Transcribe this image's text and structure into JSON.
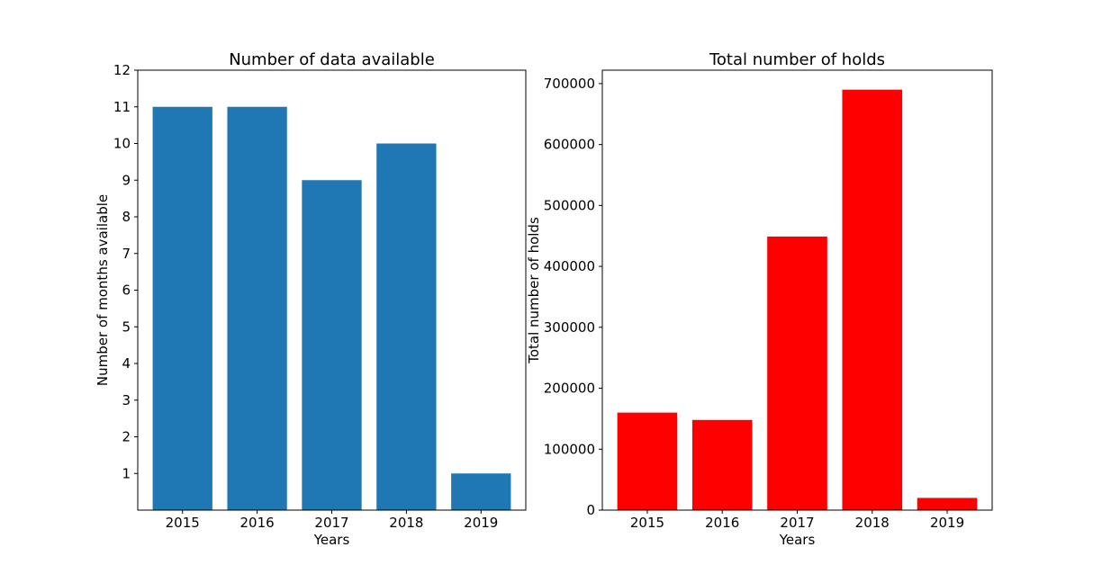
{
  "chart_data": [
    {
      "type": "bar",
      "title": "Number of data available",
      "xlabel": "Years",
      "ylabel": "Number of months available",
      "categories": [
        "2015",
        "2016",
        "2017",
        "2018",
        "2019"
      ],
      "values": [
        11,
        11,
        9,
        10,
        1
      ],
      "ylim": [
        0,
        12
      ],
      "yticks": [
        1,
        2,
        3,
        4,
        5,
        6,
        7,
        8,
        9,
        10,
        11,
        12
      ],
      "color": "#1f77b4",
      "grid": false
    },
    {
      "type": "bar",
      "title": "Total number of holds",
      "xlabel": "Years",
      "ylabel": "Total number of holds",
      "categories": [
        "2015",
        "2016",
        "2017",
        "2018",
        "2019"
      ],
      "values": [
        160000,
        148000,
        449000,
        690000,
        20000
      ],
      "ylim": [
        0,
        722000
      ],
      "yticks": [
        0,
        100000,
        200000,
        300000,
        400000,
        500000,
        600000,
        700000
      ],
      "color": "#ff0000",
      "grid": false
    }
  ]
}
